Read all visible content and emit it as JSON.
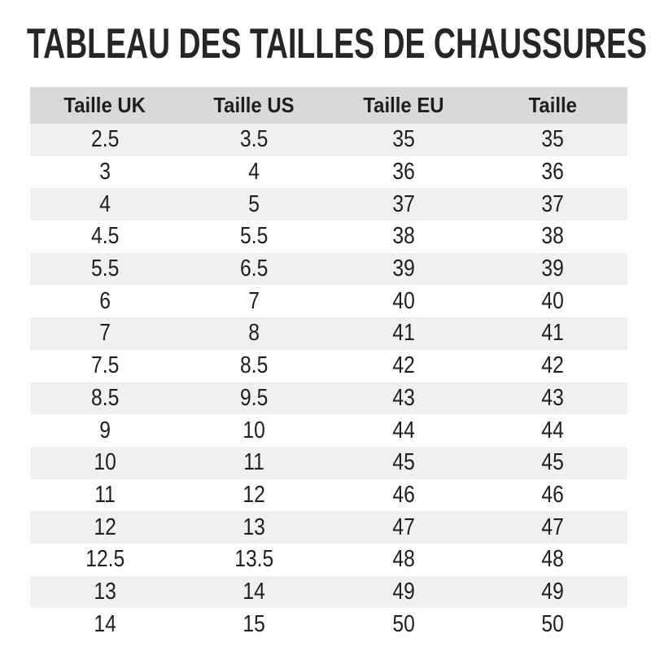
{
  "page": {
    "title": "TABLEAU DES TAILLES DE CHAUSSURES"
  },
  "colors": {
    "header_bg": "#d9d9d9",
    "stripe_bg": "#f0f0f0",
    "text": "#1f1f1f",
    "title_text": "#262626",
    "background": "#ffffff"
  },
  "table": {
    "headers": [
      "Taille UK",
      "Taille US",
      "Taille EU",
      "Taille"
    ],
    "rows": [
      [
        "2.5",
        "3.5",
        "35",
        "35"
      ],
      [
        "3",
        "4",
        "36",
        "36"
      ],
      [
        "4",
        "5",
        "37",
        "37"
      ],
      [
        "4.5",
        "5.5",
        "38",
        "38"
      ],
      [
        "5.5",
        "6.5",
        "39",
        "39"
      ],
      [
        "6",
        "7",
        "40",
        "40"
      ],
      [
        "7",
        "8",
        "41",
        "41"
      ],
      [
        "7.5",
        "8.5",
        "42",
        "42"
      ],
      [
        "8.5",
        "9.5",
        "43",
        "43"
      ],
      [
        "9",
        "10",
        "44",
        "44"
      ],
      [
        "10",
        "11",
        "45",
        "45"
      ],
      [
        "11",
        "12",
        "46",
        "46"
      ],
      [
        "12",
        "13",
        "47",
        "47"
      ],
      [
        "12.5",
        "13.5",
        "48",
        "48"
      ],
      [
        "13",
        "14",
        "49",
        "49"
      ],
      [
        "14",
        "15",
        "50",
        "50"
      ]
    ]
  }
}
